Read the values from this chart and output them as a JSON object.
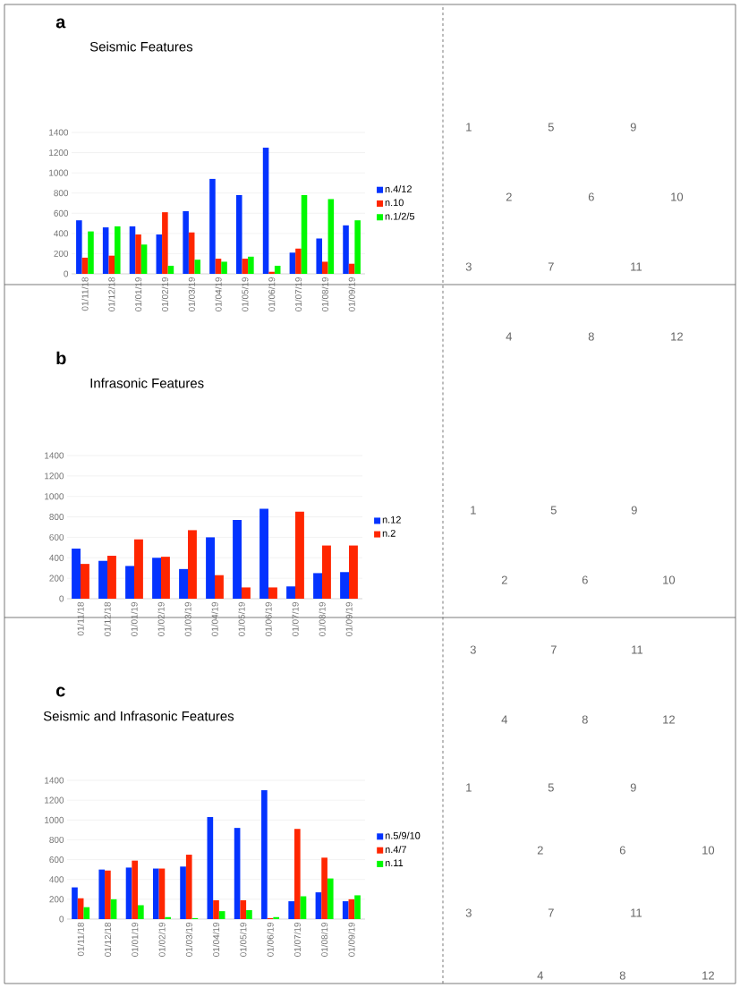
{
  "chart_data": [
    {
      "type": "bar",
      "title": "Seismic Features",
      "annotations": [
        "a"
      ],
      "categories": [
        "01/11/18",
        "01/12/18",
        "01/01/19",
        "01/02/19",
        "01/03/19",
        "01/04/19",
        "01/05/19",
        "01/06/19",
        "01/07/19",
        "01/08/19",
        "01/09/19"
      ],
      "ylim": [
        0,
        1400
      ],
      "yticks": [
        0,
        200,
        400,
        600,
        800,
        1000,
        1200,
        1400
      ],
      "grid": "y",
      "legend": "right",
      "series": [
        {
          "name": "n.4/12",
          "color": "#0433ff",
          "values": [
            530,
            460,
            470,
            390,
            620,
            940,
            780,
            1250,
            210,
            350,
            480
          ]
        },
        {
          "name": "n.10",
          "color": "#ff2600",
          "values": [
            160,
            180,
            390,
            610,
            410,
            150,
            150,
            20,
            250,
            120,
            100
          ]
        },
        {
          "name": "n.1/2/5",
          "color": "#00f900",
          "values": [
            420,
            470,
            290,
            80,
            140,
            120,
            170,
            80,
            780,
            740,
            530
          ]
        }
      ]
    },
    {
      "type": "other",
      "annotations": [
        "1",
        "5",
        "9",
        "2",
        "6",
        "10",
        "3",
        "7",
        "11",
        "4",
        "8",
        "12"
      ]
    },
    {
      "type": "bar",
      "title": "Infrasonic Features",
      "annotations": [
        "b"
      ],
      "categories": [
        "01/11/18",
        "01/12/18",
        "01/01/19",
        "01/02/19",
        "01/03/19",
        "01/04/19",
        "01/05/19",
        "01/06/19",
        "01/07/19",
        "01/08/19",
        "01/09/19"
      ],
      "ylim": [
        0,
        1400
      ],
      "yticks": [
        0,
        200,
        400,
        600,
        800,
        1000,
        1200,
        1400
      ],
      "grid": "y",
      "legend": "right",
      "series": [
        {
          "name": "n.12",
          "color": "#0433ff",
          "values": [
            490,
            370,
            320,
            400,
            290,
            600,
            770,
            880,
            120,
            250,
            260
          ]
        },
        {
          "name": "n.2",
          "color": "#ff2600",
          "values": [
            340,
            420,
            580,
            410,
            670,
            230,
            110,
            110,
            850,
            520,
            520
          ]
        }
      ]
    },
    {
      "type": "other",
      "annotations": [
        "1",
        "5",
        "9",
        "2",
        "6",
        "10",
        "3",
        "7",
        "11",
        "4",
        "8",
        "12"
      ]
    },
    {
      "type": "bar",
      "title": "Seismic and Infrasonic Features",
      "annotations": [
        "c"
      ],
      "categories": [
        "01/11/18",
        "01/12/18",
        "01/01/19",
        "01/02/19",
        "01/03/19",
        "01/04/19",
        "01/05/19",
        "01/06/19",
        "01/07/19",
        "01/08/19",
        "01/09/19"
      ],
      "ylim": [
        0,
        1400
      ],
      "yticks": [
        0,
        200,
        400,
        600,
        800,
        1000,
        1200,
        1400
      ],
      "grid": "y",
      "legend": "right",
      "series": [
        {
          "name": "n.5/9/10",
          "color": "#0433ff",
          "values": [
            320,
            500,
            520,
            510,
            530,
            1030,
            920,
            1300,
            180,
            270,
            180
          ]
        },
        {
          "name": "n.4/7",
          "color": "#ff2600",
          "values": [
            210,
            490,
            590,
            510,
            650,
            190,
            190,
            10,
            910,
            620,
            200
          ]
        },
        {
          "name": "n.11",
          "color": "#00f900",
          "values": [
            120,
            200,
            140,
            20,
            10,
            80,
            90,
            20,
            230,
            410,
            240
          ]
        }
      ]
    },
    {
      "type": "other",
      "annotations": [
        "1",
        "5",
        "9",
        "2",
        "6",
        "10",
        "3",
        "7",
        "11",
        "4",
        "8",
        "12"
      ]
    }
  ]
}
